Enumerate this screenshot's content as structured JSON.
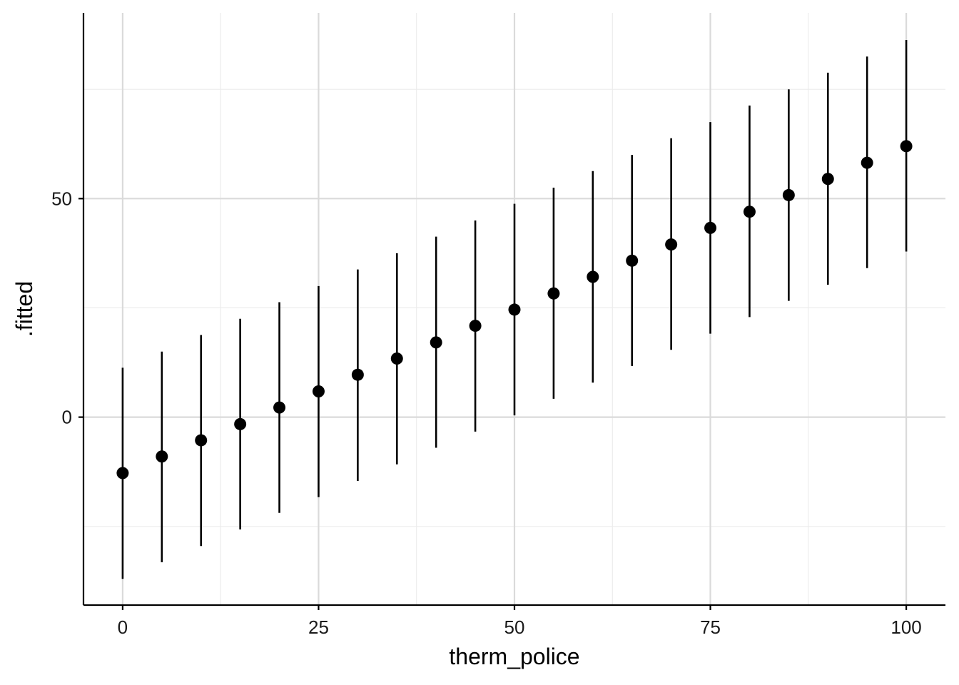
{
  "chart_data": {
    "type": "scatter",
    "title": "",
    "xlabel": "therm_police",
    "ylabel": ".fitted",
    "xlim": [
      -5,
      105
    ],
    "ylim": [
      -43,
      92.5
    ],
    "x_ticks": [
      0,
      25,
      50,
      75,
      100
    ],
    "x_tick_labels": [
      "0",
      "25",
      "50",
      "75",
      "100"
    ],
    "y_ticks": [
      0,
      50
    ],
    "y_tick_labels": [
      "0",
      "50"
    ],
    "grid": true,
    "legend": "none",
    "series": [
      {
        "x": [
          0,
          5,
          10,
          15,
          20,
          25,
          30,
          35,
          40,
          45,
          50,
          55,
          60,
          65,
          70,
          75,
          80,
          85,
          90,
          95,
          100
        ],
        "y": [
          -12.8,
          -9.0,
          -5.3,
          -1.6,
          2.2,
          5.9,
          9.7,
          13.4,
          17.1,
          20.9,
          24.6,
          28.3,
          32.1,
          35.8,
          39.5,
          43.3,
          47.0,
          50.8,
          54.5,
          58.2,
          62.0
        ],
        "ymin": [
          -37.0,
          -33.2,
          -29.5,
          -25.7,
          -21.9,
          -18.3,
          -14.6,
          -10.8,
          -7.0,
          -3.3,
          0.4,
          4.2,
          7.9,
          11.7,
          15.4,
          19.1,
          22.9,
          26.6,
          30.3,
          34.1,
          37.9
        ],
        "ymax": [
          11.3,
          15.0,
          18.8,
          22.5,
          26.3,
          30.0,
          33.8,
          37.5,
          41.3,
          45.0,
          48.8,
          52.5,
          56.3,
          60.0,
          63.8,
          67.5,
          71.3,
          75.0,
          78.8,
          82.5,
          86.3
        ]
      }
    ],
    "colors": {
      "points": "#000000",
      "grid_major": "#dadada",
      "grid_minor": "#ebebeb"
    }
  }
}
